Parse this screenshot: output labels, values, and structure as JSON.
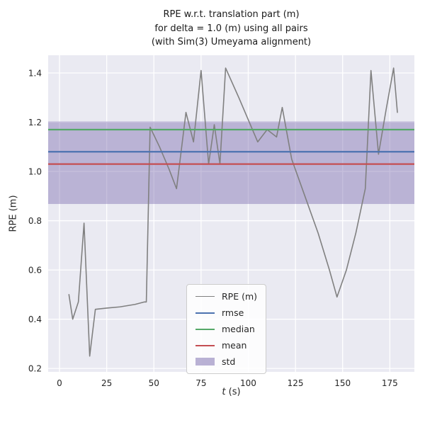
{
  "chart_data": {
    "type": "line",
    "title_lines": [
      "RPE w.r.t. translation part (m)",
      "for delta = 1.0 (m) using all pairs",
      "(with Sim(3) Umeyama alignment)"
    ],
    "ylabel": "RPE (m)",
    "xlabel_italic": "t",
    "xlabel_rest": " (s)",
    "xlim": [
      -6,
      188
    ],
    "ylim": [
      0.186,
      1.472
    ],
    "xticks": [
      0,
      25,
      50,
      75,
      100,
      125,
      150,
      175
    ],
    "yticks": [
      0.2,
      0.4,
      0.6,
      0.8,
      1.0,
      1.2,
      1.4
    ],
    "background": "#EAEAF2",
    "grid_color": "#FFFFFF",
    "grid": true,
    "legend_position": "lower center-left inside axes",
    "series": [
      {
        "name": "rpe",
        "type": "line",
        "label": "RPE (m)",
        "color": "#808080",
        "x": [
          5,
          7,
          10,
          13,
          16,
          19,
          25,
          32,
          40,
          45,
          46,
          48,
          53,
          58,
          62,
          67,
          71,
          75,
          79,
          82,
          85,
          88,
          95,
          100,
          105,
          110,
          115,
          118,
          123,
          130,
          137,
          143,
          147,
          152,
          157,
          162,
          165,
          169,
          173,
          177,
          179
        ],
        "y": [
          0.5,
          0.4,
          0.47,
          0.79,
          0.25,
          0.44,
          0.445,
          0.45,
          0.46,
          0.47,
          0.47,
          1.18,
          1.1,
          1.01,
          0.93,
          1.24,
          1.12,
          1.41,
          1.03,
          1.19,
          1.03,
          1.42,
          1.3,
          1.21,
          1.12,
          1.17,
          1.14,
          1.26,
          1.05,
          0.9,
          0.75,
          0.6,
          0.49,
          0.6,
          0.75,
          0.93,
          1.41,
          1.07,
          1.25,
          1.42,
          1.24
        ]
      },
      {
        "name": "rmse",
        "type": "hline",
        "label": "rmse",
        "color": "#4C72B0",
        "value": 1.08
      },
      {
        "name": "median",
        "type": "hline",
        "label": "median",
        "color": "#55A868",
        "value": 1.17
      },
      {
        "name": "mean",
        "type": "hline",
        "label": "mean",
        "color": "#C44E52",
        "value": 1.03
      },
      {
        "name": "std",
        "type": "band",
        "label": "std",
        "color": "#8172B2",
        "range": [
          0.868,
          1.203
        ]
      }
    ]
  }
}
